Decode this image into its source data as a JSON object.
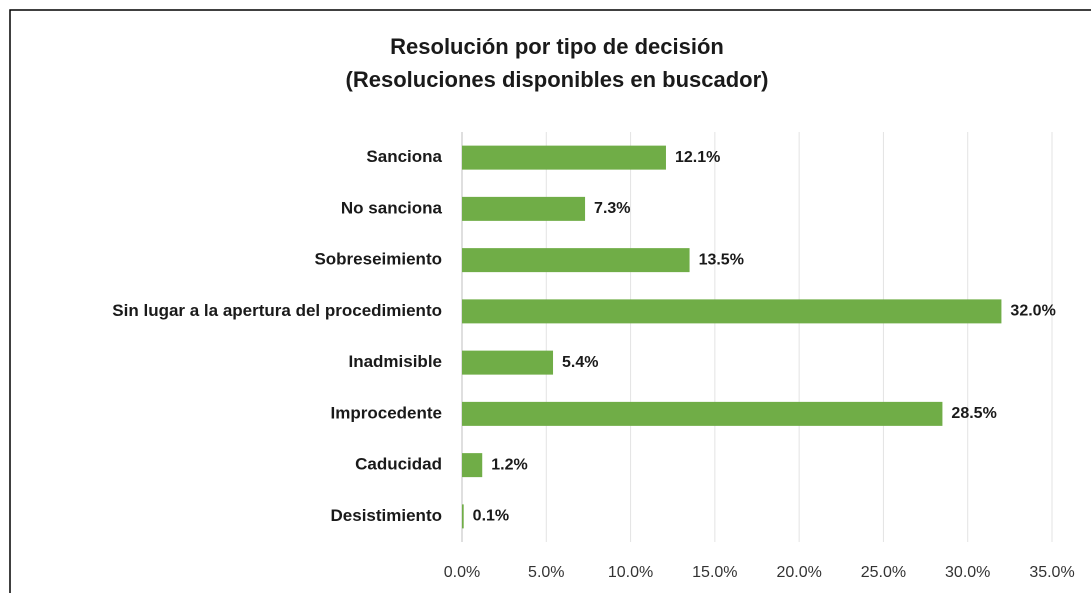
{
  "chart_data": {
    "type": "bar",
    "orientation": "horizontal",
    "title": "Resolución por tipo de decisión",
    "subtitle": "(Resoluciones disponibles en buscador)",
    "categories": [
      "Sanciona",
      "No sanciona",
      "Sobreseimiento",
      "Sin lugar a la apertura del procedimiento",
      "Inadmisible",
      "Improcedente",
      "Caducidad",
      "Desistimiento"
    ],
    "values": [
      12.1,
      7.3,
      13.5,
      32.0,
      5.4,
      28.5,
      1.2,
      0.1
    ],
    "value_labels": [
      "12.1%",
      "7.3%",
      "13.5%",
      "32.0%",
      "5.4%",
      "28.5%",
      "1.2%",
      "0.1%"
    ],
    "color": "#70ad47",
    "xlim": [
      0,
      35
    ],
    "xticks": [
      {
        "value": 0,
        "label": "0.0%"
      },
      {
        "value": 5,
        "label": "5.0%"
      },
      {
        "value": 10,
        "label": "10.0%"
      },
      {
        "value": 15,
        "label": "15.0%"
      },
      {
        "value": 20,
        "label": "20.0%"
      },
      {
        "value": 25,
        "label": "25.0%"
      },
      {
        "value": 30,
        "label": "30.0%"
      },
      {
        "value": 35,
        "label": "35.0%"
      }
    ],
    "grid": true
  }
}
